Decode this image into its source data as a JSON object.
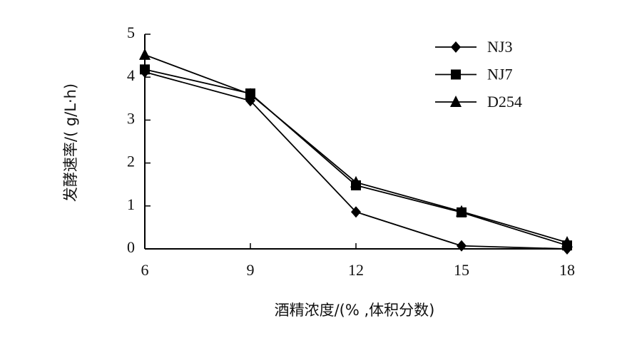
{
  "chart_data": {
    "type": "line",
    "x_label": "酒精浓度/(% ,体积分数)",
    "y_label": "发酵速率/( g/L·h)",
    "x": [
      6,
      9,
      12,
      15,
      18
    ],
    "series": [
      {
        "name": "NJ3",
        "color": "#000000",
        "marker": "diamond",
        "values": [
          4.12,
          3.45,
          0.86,
          0.07,
          0.0
        ]
      },
      {
        "name": "NJ7",
        "color": "#000000",
        "marker": "square",
        "values": [
          4.18,
          3.62,
          1.48,
          0.85,
          0.08
        ]
      },
      {
        "name": "D254",
        "color": "#000000",
        "marker": "triangle",
        "values": [
          4.52,
          3.6,
          1.55,
          0.87,
          0.15
        ]
      }
    ],
    "xlim": [
      6,
      18
    ],
    "xticks": [
      6,
      9,
      12,
      15,
      18
    ],
    "ylim": [
      0,
      5
    ],
    "yticks": [
      0,
      1,
      2,
      3,
      4,
      5
    ],
    "legend": "upper-right",
    "grid": false
  }
}
